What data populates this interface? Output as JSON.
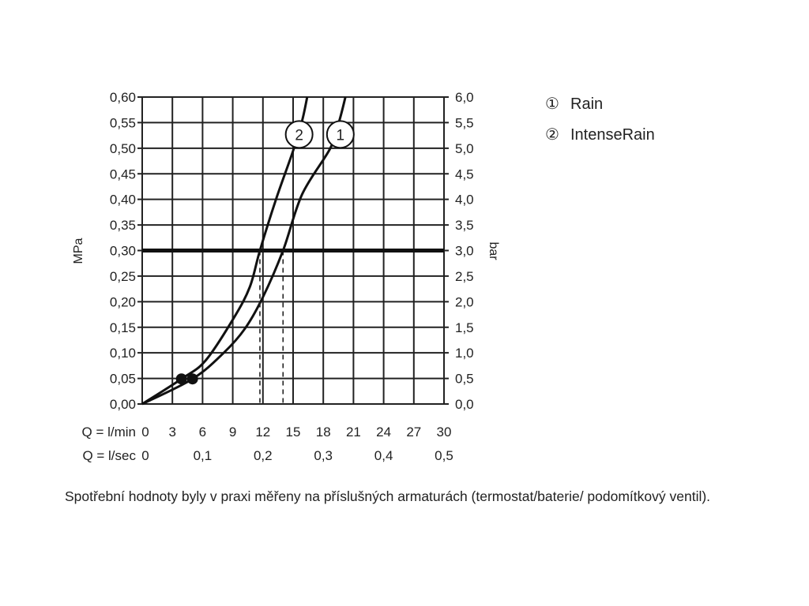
{
  "chart_data": {
    "type": "line",
    "title": "",
    "xlabel_rows": [
      {
        "label": "Q = l/min",
        "ticks": [
          "0",
          "3",
          "6",
          "9",
          "12",
          "15",
          "18",
          "21",
          "24",
          "27",
          "30"
        ],
        "values": [
          0,
          3,
          6,
          9,
          12,
          15,
          18,
          21,
          24,
          27,
          30
        ]
      },
      {
        "label": "Q = l/sec",
        "ticks": [
          "0",
          "0,1",
          "0,2",
          "0,3",
          "0,4",
          "0,5"
        ],
        "values": [
          0,
          6,
          12,
          18,
          24,
          30
        ]
      }
    ],
    "ylabel_left": "MPa",
    "ylabel_right": "bar",
    "yticks_left": [
      "0,00",
      "0,05",
      "0,10",
      "0,15",
      "0,20",
      "0,25",
      "0,30",
      "0,35",
      "0,40",
      "0,45",
      "0,50",
      "0,55",
      "0,60"
    ],
    "yticks_right": [
      "0,0",
      "0,5",
      "1,0",
      "1,5",
      "2,0",
      "2,5",
      "3,0",
      "3,5",
      "4,0",
      "4,5",
      "5,0",
      "5,5",
      "6,0"
    ],
    "xlim": [
      0,
      30
    ],
    "ylim": [
      0,
      0.6
    ],
    "grid": true,
    "reference_line": {
      "y": 0.3
    },
    "series": [
      {
        "name": "Rain",
        "marker": "1",
        "points": [
          [
            0,
            0
          ],
          [
            5.0,
            0.049
          ],
          [
            8.1,
            0.1
          ],
          [
            10.2,
            0.147
          ],
          [
            12,
            0.209
          ],
          [
            14,
            0.3
          ],
          [
            15.9,
            0.41
          ],
          [
            18.7,
            0.5
          ],
          [
            19.6,
            0.554
          ],
          [
            20.2,
            0.6
          ]
        ],
        "dot": [
          5.0,
          0.049
        ],
        "label_at": [
          19.7,
          0.527
        ],
        "dashed_drop_x": 14.0
      },
      {
        "name": "IntenseRain",
        "marker": "2",
        "points": [
          [
            0,
            0
          ],
          [
            3.9,
            0.049
          ],
          [
            6.3,
            0.085
          ],
          [
            9.1,
            0.168
          ],
          [
            10.7,
            0.229
          ],
          [
            11.7,
            0.3
          ],
          [
            13.3,
            0.4
          ],
          [
            15,
            0.495
          ],
          [
            15.9,
            0.554
          ],
          [
            16.4,
            0.6
          ]
        ],
        "dot": [
          3.9,
          0.049
        ],
        "label_at": [
          15.6,
          0.527
        ],
        "dashed_drop_x": 11.7
      }
    ],
    "legend": {
      "placement": "top-right",
      "entries": [
        {
          "symbol": "①",
          "label": "Rain"
        },
        {
          "symbol": "②",
          "label": "IntenseRain"
        }
      ]
    }
  },
  "caption": "Spotřební hodnoty byly v praxi měřeny na příslušných armaturách (termostat/baterie/ podomítkový ventil)."
}
